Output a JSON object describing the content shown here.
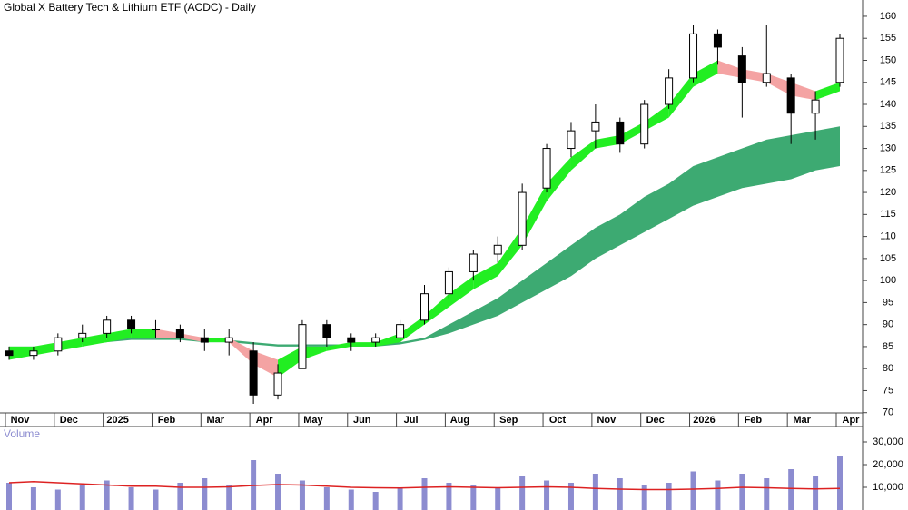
{
  "chart_data": [
    {
      "type": "candlestick",
      "title": "Global X Battery Tech & Lithium ETF (ACDC) - Daily",
      "categories": [
        "Nov",
        null,
        "Dec",
        null,
        "2025",
        null,
        "Feb",
        null,
        "Mar",
        null,
        "Apr",
        null,
        "May",
        null,
        "Jun",
        null,
        "Jul",
        null,
        "Aug",
        null,
        "Sep",
        null,
        "Oct",
        null,
        "Nov",
        null,
        "Dec",
        null,
        "2026",
        null,
        "Feb",
        null,
        "Mar",
        null,
        "Apr"
      ],
      "open": [
        84,
        83,
        84,
        87,
        88,
        91,
        89,
        89,
        87,
        86,
        84,
        74,
        80,
        90,
        87,
        86,
        87,
        91,
        97,
        102,
        106,
        108,
        121,
        130,
        134,
        136,
        131,
        140,
        146,
        156,
        151,
        145,
        146,
        138,
        145
      ],
      "high": [
        85,
        85,
        88,
        90,
        92,
        92,
        91,
        90,
        89,
        89,
        86,
        81,
        91,
        91,
        88,
        88,
        91,
        99,
        103,
        107,
        110,
        122,
        131,
        136,
        140,
        137,
        141,
        148,
        158,
        157,
        153,
        158,
        147,
        143,
        156
      ],
      "low": [
        82,
        82,
        83,
        86,
        87,
        88,
        87,
        86,
        84,
        83,
        72,
        73,
        80,
        85,
        84,
        85,
        86,
        90,
        96,
        100,
        104,
        107,
        120,
        128,
        130,
        129,
        130,
        139,
        145,
        149,
        137,
        144,
        131,
        132,
        144
      ],
      "close": [
        83,
        84,
        87,
        88,
        91,
        89,
        89,
        87,
        86,
        87,
        74,
        79,
        90,
        87,
        86,
        87,
        90,
        97,
        102,
        106,
        108,
        120,
        130,
        134,
        136,
        131,
        140,
        146,
        156,
        153,
        145,
        147,
        138,
        141,
        155
      ],
      "fast_band": {
        "upper": [
          85,
          85,
          86,
          87,
          88,
          89,
          89,
          88,
          87,
          87,
          84,
          82,
          85,
          85,
          86,
          86,
          88,
          92,
          97,
          101,
          104,
          112,
          122,
          128,
          132,
          133,
          136,
          140,
          147,
          150,
          148,
          147,
          145,
          143,
          145
        ],
        "lower": [
          82,
          83,
          84,
          85,
          86,
          87,
          87,
          87,
          86,
          86,
          81,
          78,
          82,
          84,
          85,
          85,
          86,
          90,
          94,
          98,
          101,
          108,
          118,
          125,
          130,
          131,
          134,
          137,
          144,
          147,
          146,
          145,
          142,
          141,
          143
        ],
        "up_color": "#22ee22",
        "down_color": "#f4a3a3"
      },
      "slow_band": {
        "upper": [
          85,
          85,
          85.5,
          86,
          86.5,
          87,
          87,
          87,
          86.5,
          86.5,
          86,
          85.5,
          85.5,
          85.5,
          85.5,
          85.5,
          86,
          87,
          90,
          93,
          96,
          100,
          104,
          108,
          112,
          115,
          119,
          122,
          126,
          128,
          130,
          132,
          133,
          134,
          135
        ],
        "lower": [
          84,
          84.5,
          85,
          85.5,
          86,
          86.5,
          86.5,
          86.5,
          86,
          86,
          85.5,
          85,
          85,
          85,
          85,
          85,
          85.5,
          86.5,
          88,
          90,
          92,
          95,
          98,
          101,
          105,
          108,
          111,
          114,
          117,
          119,
          121,
          122,
          123,
          125,
          126
        ],
        "color": "#3daa72"
      },
      "ylim": [
        68.5,
        163.7
      ],
      "yticks": [
        70,
        75,
        80,
        85,
        90,
        95,
        100,
        105,
        110,
        115,
        120,
        125,
        130,
        135,
        140,
        145,
        150,
        155,
        160
      ]
    },
    {
      "type": "bar",
      "title": "Volume",
      "color": "#8c8cd0",
      "ma_color": "#dd2222",
      "values": [
        12000,
        10000,
        9000,
        11000,
        13000,
        10000,
        9000,
        12000,
        14000,
        11000,
        22000,
        16000,
        13000,
        10000,
        9000,
        8000,
        10000,
        14000,
        12000,
        11000,
        10000,
        15000,
        13000,
        12000,
        16000,
        14000,
        11000,
        12000,
        17000,
        13000,
        16000,
        14000,
        18000,
        15000,
        24000
      ],
      "ma": [
        12000,
        12500,
        12000,
        11500,
        11000,
        10500,
        10500,
        10000,
        10000,
        10200,
        10800,
        11200,
        11000,
        10500,
        10000,
        9800,
        9700,
        10000,
        10200,
        10000,
        9800,
        10000,
        10200,
        10000,
        9500,
        9200,
        9000,
        9000,
        9200,
        9500,
        10000,
        9800,
        9500,
        9300,
        9500
      ],
      "ylim": [
        0,
        36000
      ],
      "yticks": [
        {
          "value": 10000,
          "label": "10,000"
        },
        {
          "value": 20000,
          "label": "20,000"
        },
        {
          "value": 30000,
          "label": "30,000"
        }
      ]
    }
  ]
}
